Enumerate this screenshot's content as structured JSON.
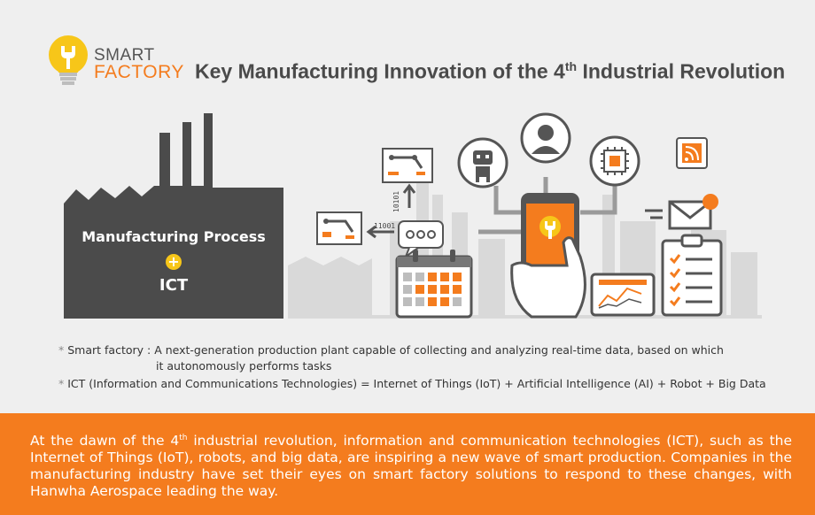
{
  "header": {
    "logo_smart": "SMART",
    "logo_factory": "FACTORY",
    "title_before": "Key Manufacturing Innovation of the 4",
    "title_sup": "th",
    "title_after": " Industrial Revolution"
  },
  "factory": {
    "line1": "Manufacturing Process",
    "plus": "+",
    "line2": "ICT"
  },
  "binary": {
    "horizontal": "11001",
    "vertical": "10101"
  },
  "notes": {
    "bullet": "*",
    "smart_factory_line1": "Smart factory : A next-generation production plant capable of collecting and analyzing real-time data, based on which",
    "smart_factory_line2": "it autonomously performs tasks",
    "ict": "ICT (Information and Communications Technologies) = Internet of Things (IoT) + Artificial Intelligence (AI) + Robot + Big Data"
  },
  "bottom": {
    "text_before": "At the dawn of the 4",
    "text_sup": "th",
    "text_after": " industrial revolution, information and communication technologies (ICT), such as the Internet of Things (IoT), robots, and big data, are inspiring a new wave of smart production. Companies in the manufacturing industry have set their eyes on smart factory solutions to respond to these changes, with Hanwha Aerospace leading the way."
  },
  "colors": {
    "accent": "#f47c1e",
    "factory": "#4b4b4b",
    "background": "#efefef",
    "bulb": "#f7c619"
  }
}
